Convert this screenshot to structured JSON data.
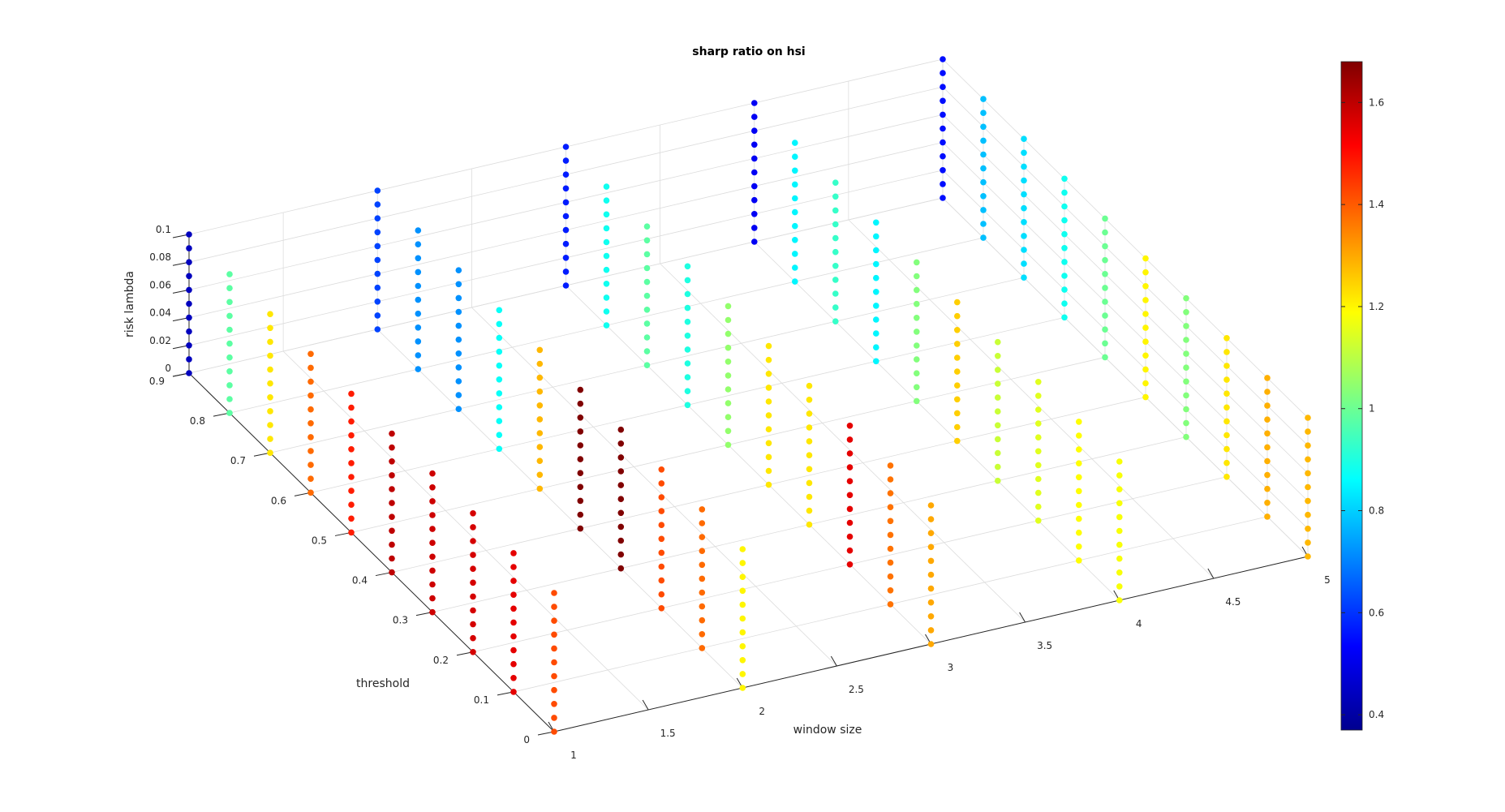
{
  "chart_data": {
    "type": "scatter3d",
    "title": "sharp ratio on hsi",
    "xlabel": "window size",
    "ylabel": "threshold",
    "zlabel": "risk lambda",
    "xlim": [
      1,
      5
    ],
    "ylim": [
      0,
      0.9
    ],
    "zlim": [
      0,
      0.1
    ],
    "xticks": [
      "1",
      "1.5",
      "2",
      "2.5",
      "3",
      "3.5",
      "4",
      "4.5",
      "5"
    ],
    "yticks": [
      "0",
      "0.1",
      "0.2",
      "0.3",
      "0.4",
      "0.5",
      "0.6",
      "0.7",
      "0.8",
      "0.9"
    ],
    "zticks": [
      "0",
      "0.02",
      "0.04",
      "0.06",
      "0.08",
      "0.1"
    ],
    "colormap": "jet",
    "colorbar": {
      "min": 0.37,
      "max": 1.68,
      "ticks": [
        "0.4",
        "0.6",
        "0.8",
        "1",
        "1.2",
        "1.4",
        "1.6"
      ]
    },
    "grid": true,
    "window_sizes": [
      1,
      2,
      3,
      4,
      5
    ],
    "thresholds": [
      0,
      0.1,
      0.2,
      0.3,
      0.4,
      0.5,
      0.6,
      0.7,
      0.8,
      0.9
    ],
    "risk_lambdas": [
      0,
      0.01,
      0.02,
      0.03,
      0.04,
      0.05,
      0.06,
      0.07,
      0.08,
      0.09,
      0.1
    ],
    "sharpe_values": [
      [
        1.42,
        1.55,
        1.57,
        1.58,
        1.6,
        1.48,
        1.38,
        1.22,
        0.98,
        0.45
      ],
      [
        1.2,
        1.38,
        1.42,
        1.68,
        1.68,
        1.28,
        0.87,
        0.72,
        0.72,
        0.62
      ],
      [
        1.3,
        1.37,
        1.55,
        1.22,
        1.22,
        1.05,
        0.9,
        0.98,
        0.88,
        0.57
      ],
      [
        1.18,
        1.19,
        1.15,
        1.12,
        1.25,
        1.03,
        0.85,
        0.93,
        0.85,
        0.52
      ],
      [
        1.28,
        1.29,
        1.22,
        1.03,
        1.2,
        1.0,
        0.88,
        0.82,
        0.78,
        0.55
      ]
    ]
  }
}
